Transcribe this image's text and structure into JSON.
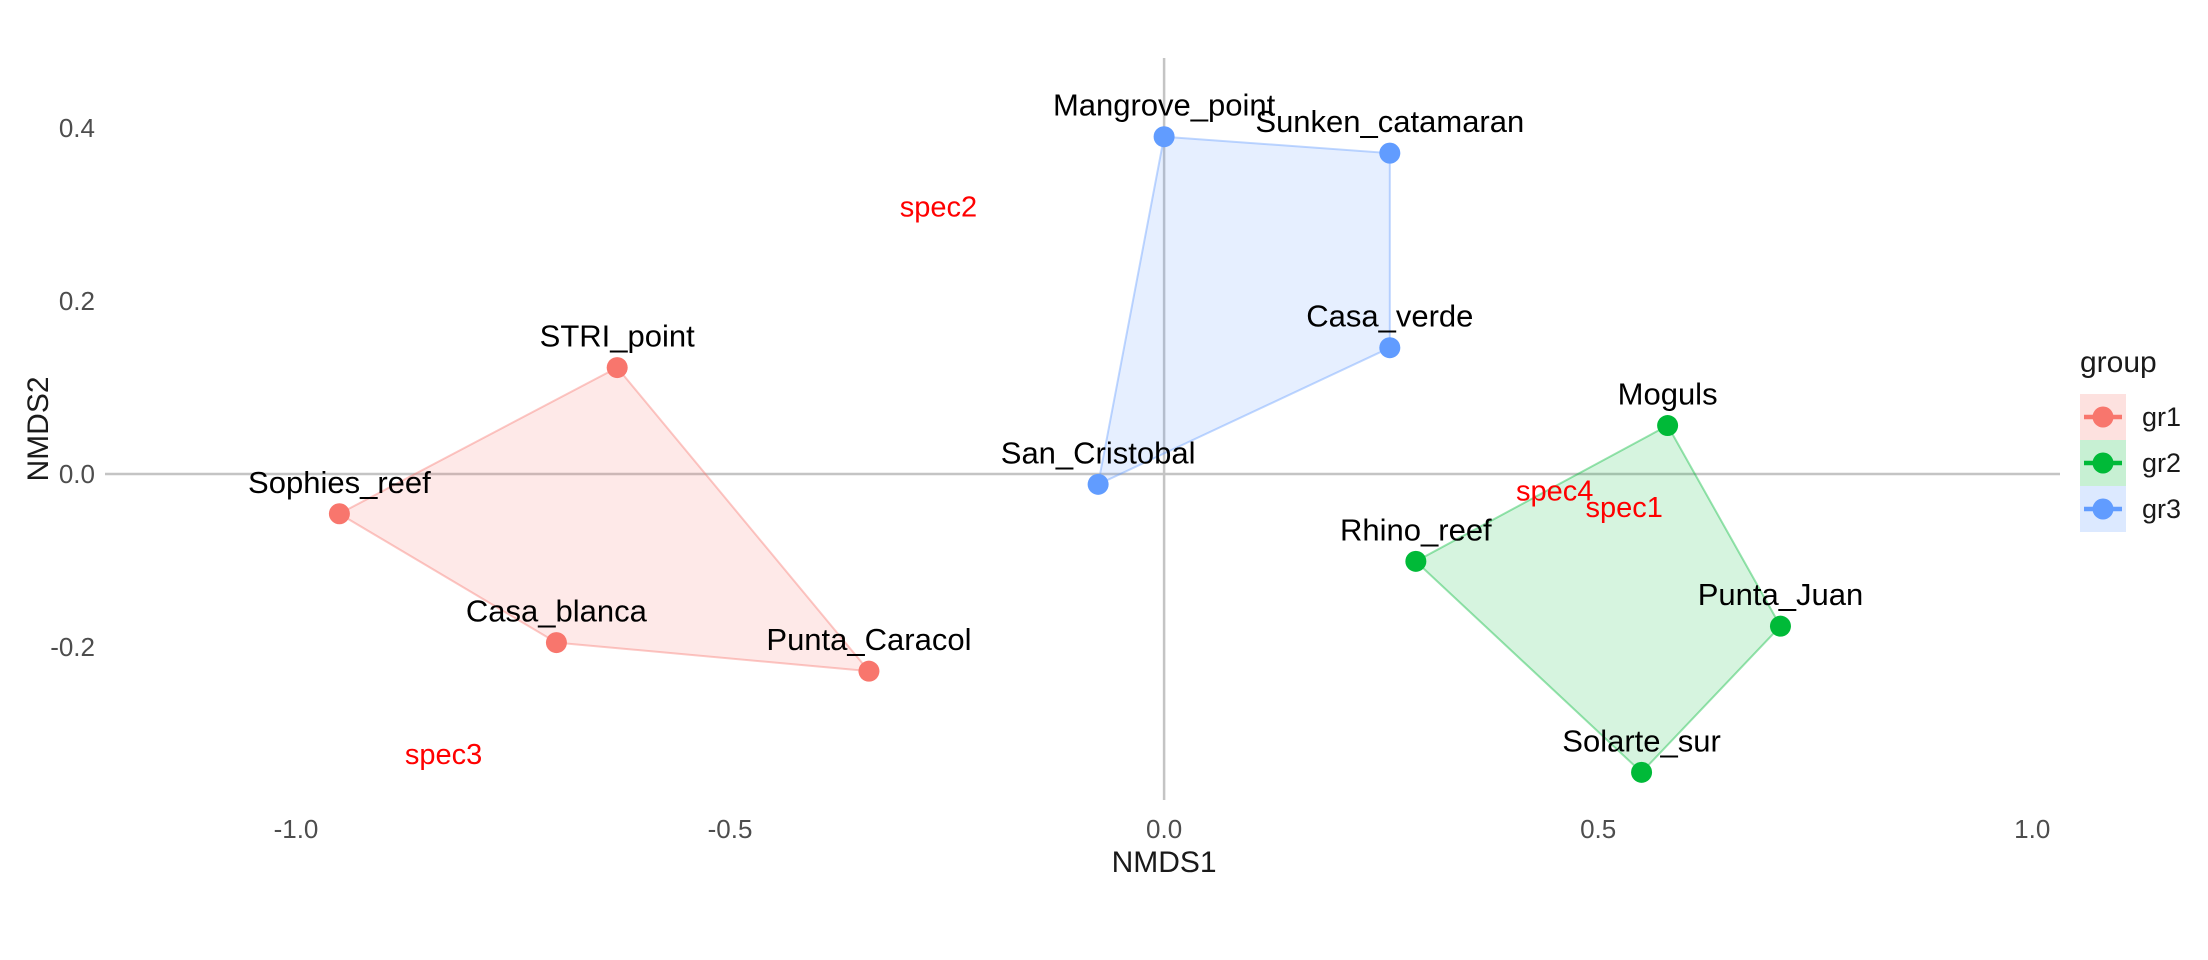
{
  "legend": {
    "title": "group",
    "items": [
      {
        "label": "gr1",
        "color": "#F8766D"
      },
      {
        "label": "gr2",
        "color": "#00BA38"
      },
      {
        "label": "gr3",
        "color": "#619CFF"
      }
    ]
  },
  "chart_data": {
    "type": "scatter",
    "title": "",
    "xlabel": "NMDS1",
    "ylabel": "NMDS2",
    "xlim": [
      -1.22,
      1.032
    ],
    "ylim": [
      -0.377,
      0.481
    ],
    "x_ticks": [
      -1.0,
      -0.5,
      0.0,
      0.5,
      1.0
    ],
    "y_ticks": [
      -0.2,
      0.0,
      0.2,
      0.4
    ],
    "grid": "none",
    "zero_lines": true,
    "zero_line_color": "#C4C4C4",
    "legend_position": "right",
    "point_radius": 10.5,
    "hull_fill_opacity": 0.16,
    "hull_stroke_opacity": 0.4,
    "groups": [
      {
        "name": "gr1",
        "color": "#F8766D",
        "points": [
          {
            "label": "STRI_point",
            "x": -0.63,
            "y": 0.123
          },
          {
            "label": "Punta_Caracol",
            "x": -0.34,
            "y": -0.228
          },
          {
            "label": "Casa_blanca",
            "x": -0.7,
            "y": -0.195
          },
          {
            "label": "Sophies_reef",
            "x": -0.95,
            "y": -0.046
          }
        ]
      },
      {
        "name": "gr2",
        "color": "#00BA38",
        "points": [
          {
            "label": "Moguls",
            "x": 0.58,
            "y": 0.056
          },
          {
            "label": "Punta_Juan",
            "x": 0.71,
            "y": -0.176
          },
          {
            "label": "Solarte_sur",
            "x": 0.55,
            "y": -0.345
          },
          {
            "label": "Rhino_reef",
            "x": 0.29,
            "y": -0.101
          }
        ]
      },
      {
        "name": "gr3",
        "color": "#619CFF",
        "points": [
          {
            "label": "Mangrove_point",
            "x": 0.0,
            "y": 0.39
          },
          {
            "label": "Sunken_catamaran",
            "x": 0.26,
            "y": 0.371
          },
          {
            "label": "Casa_verde",
            "x": 0.26,
            "y": 0.146
          },
          {
            "label": "San_Cristobal",
            "x": -0.076,
            "y": -0.012
          }
        ]
      }
    ],
    "species": [
      {
        "label": "spec1",
        "x": 0.53,
        "y": -0.038
      },
      {
        "label": "spec2",
        "x": -0.26,
        "y": 0.309
      },
      {
        "label": "spec3",
        "x": -0.83,
        "y": -0.324
      },
      {
        "label": "spec4",
        "x": 0.45,
        "y": -0.019
      }
    ],
    "species_color": "#FF0000"
  }
}
